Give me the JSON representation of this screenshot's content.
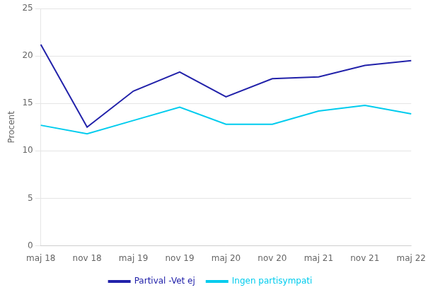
{
  "chart_data": {
    "type": "line",
    "ylabel": "Procent",
    "categories": [
      "maj 18",
      "nov 18",
      "maj 19",
      "nov 19",
      "maj 20",
      "nov 20",
      "maj 21",
      "nov 21",
      "maj 22"
    ],
    "series": [
      {
        "name": "Partival -Vet ej",
        "color": "#2222aa",
        "values": [
          21.2,
          12.5,
          16.3,
          18.3,
          15.7,
          17.6,
          17.8,
          19.0,
          19.5
        ]
      },
      {
        "name": "Ingen partisympati",
        "color": "#00ccee",
        "values": [
          12.7,
          11.8,
          13.2,
          14.6,
          12.8,
          12.8,
          14.2,
          14.8,
          13.9
        ]
      }
    ],
    "ylim": [
      0,
      25
    ],
    "yticks": [
      0,
      5,
      10,
      15,
      20,
      25
    ],
    "grid": true,
    "legend": "bottom"
  }
}
